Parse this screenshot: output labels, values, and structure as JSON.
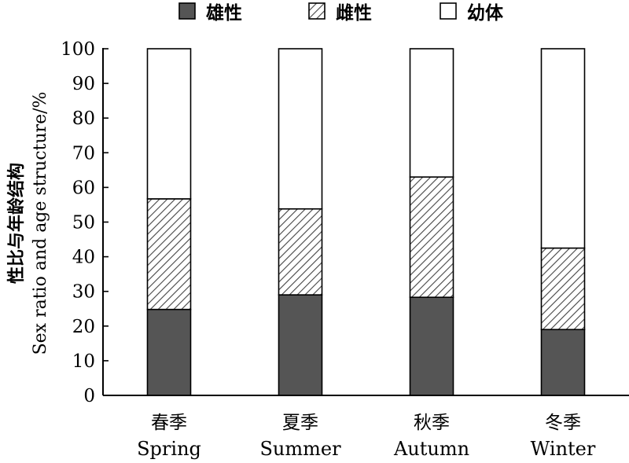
{
  "chart_data": {
    "type": "bar",
    "stacked": true,
    "categories": [
      {
        "zh": "春季",
        "en": "Spring"
      },
      {
        "zh": "夏季",
        "en": "Summer"
      },
      {
        "zh": "秋季",
        "en": "Autumn"
      },
      {
        "zh": "冬季",
        "en": "Winter"
      }
    ],
    "series": [
      {
        "name": "雄性",
        "fill": "solid",
        "color": "#555555",
        "values": [
          24.8,
          29.0,
          28.3,
          19.0
        ]
      },
      {
        "name": "雌性",
        "fill": "hatched",
        "color": "#555555",
        "values": [
          31.9,
          24.8,
          34.7,
          23.5
        ]
      },
      {
        "name": "幼体",
        "fill": "empty",
        "color": "#ffffff",
        "values": [
          43.3,
          46.2,
          37.0,
          57.5
        ]
      }
    ],
    "ylabel_zh": "性比与年龄结构",
    "ylabel_en": "Sex ratio and age structure/%",
    "xlabel": "",
    "ylim": [
      0,
      100
    ],
    "yticks": [
      0,
      10,
      20,
      30,
      40,
      50,
      60,
      70,
      80,
      90,
      100
    ],
    "grid": false,
    "legend_position": "top"
  }
}
